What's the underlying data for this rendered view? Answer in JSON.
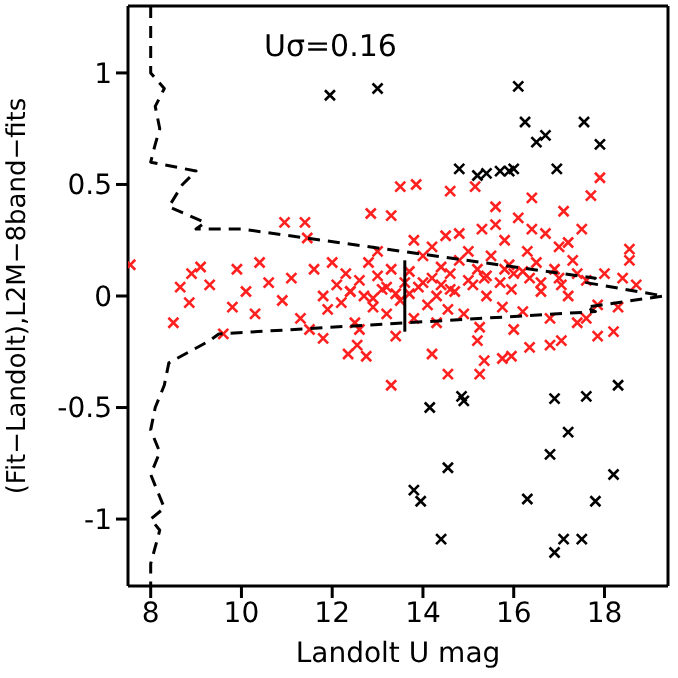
{
  "chart_data": {
    "type": "scatter",
    "xlabel": "Landolt U mag",
    "ylabel": "(Fit−Landolt),L2M−8band−fits",
    "annotations": [
      "Uσ=0.16"
    ],
    "xlim": [
      7.5,
      19.4
    ],
    "ylim": [
      -1.3,
      1.3
    ],
    "xticks": [
      8,
      10,
      12,
      14,
      16,
      18
    ],
    "yticks": [
      -1,
      -0.5,
      0,
      0.5,
      1
    ],
    "marker": "cross",
    "series": [
      {
        "color": "#ff2020",
        "x": [
          7.55,
          8.5,
          8.65,
          8.9,
          9.1,
          8.85,
          9.6,
          9.3,
          9.8,
          10.1,
          10.3,
          10.6,
          10.9,
          10.95,
          11.4,
          11.45,
          11.1,
          11.3,
          11.6,
          11.8,
          11.9,
          12.1,
          12.2,
          12.3,
          12.4,
          12.5,
          12.6,
          12.7,
          12.8,
          12.85,
          12.9,
          13.0,
          13.1,
          13.2,
          13.3,
          13.3,
          13.4,
          13.5,
          13.5,
          13.6,
          13.7,
          13.8,
          13.85,
          13.9,
          14.0,
          14.1,
          14.2,
          14.2,
          14.3,
          14.4,
          14.5,
          14.55,
          14.6,
          14.6,
          14.7,
          14.8,
          14.9,
          15.0,
          15.1,
          15.15,
          15.2,
          15.25,
          15.3,
          15.35,
          15.4,
          15.5,
          15.6,
          15.7,
          15.75,
          15.8,
          15.9,
          15.95,
          16.0,
          16.1,
          16.2,
          16.3,
          16.35,
          16.4,
          16.5,
          16.6,
          16.7,
          16.8,
          16.9,
          17.0,
          17.05,
          17.1,
          17.2,
          17.3,
          17.4,
          17.5,
          17.6,
          17.7,
          17.85,
          17.9,
          18.0,
          18.2,
          18.4,
          18.55,
          18.55,
          18.7,
          11.8,
          12.35,
          12.55,
          12.75,
          13.3,
          14.2,
          14.55,
          15.25,
          15.35,
          15.75,
          15.95,
          16.35,
          17.05,
          17.85,
          12.0,
          12.6,
          13.0,
          13.4,
          13.8,
          14.3,
          14.8,
          15.2,
          15.6,
          16.0,
          16.4,
          16.8,
          17.2,
          17.6,
          12.4,
          13.2,
          14.0,
          14.6,
          15.4,
          16.2,
          17.0,
          12.9,
          13.7,
          14.4,
          15.0,
          15.8,
          16.6,
          17.4,
          11.5,
          10.4,
          9.9,
          18.3
        ],
        "values": [
          0.14,
          -0.12,
          0.04,
          0.1,
          0.13,
          -0.03,
          -0.17,
          0.05,
          -0.05,
          0.02,
          -0.08,
          0.06,
          -0.02,
          0.33,
          0.33,
          0.26,
          0.08,
          -0.1,
          0.12,
          0.0,
          -0.06,
          0.05,
          -0.03,
          0.1,
          0.02,
          -0.12,
          0.07,
          0.0,
          0.15,
          0.37,
          -0.05,
          0.09,
          0.03,
          -0.08,
          0.36,
          0.12,
          0.01,
          0.49,
          -0.02,
          0.06,
          0.11,
          -0.1,
          0.5,
          0.04,
          0.18,
          -0.04,
          0.08,
          0.22,
          0.0,
          0.13,
          0.27,
          -0.06,
          0.47,
          0.1,
          0.02,
          0.16,
          -0.08,
          0.2,
          0.05,
          0.49,
          0.12,
          -0.14,
          0.3,
          0.08,
          0.0,
          0.18,
          0.4,
          0.06,
          -0.05,
          0.25,
          0.14,
          0.03,
          0.1,
          0.35,
          -0.07,
          0.2,
          0.08,
          0.44,
          0.15,
          0.02,
          0.28,
          -0.1,
          0.12,
          0.22,
          0.05,
          0.38,
          0.0,
          0.16,
          -0.12,
          0.3,
          0.07,
          0.45,
          -0.04,
          0.53,
          0.1,
          -0.16,
          0.08,
          0.21,
          0.16,
          0.05,
          -0.19,
          -0.26,
          -0.22,
          -0.27,
          -0.4,
          -0.26,
          -0.35,
          -0.35,
          -0.29,
          -0.28,
          -0.27,
          -0.23,
          -0.2,
          -0.18,
          0.15,
          -0.15,
          0.2,
          -0.18,
          0.25,
          -0.12,
          0.28,
          -0.2,
          0.32,
          -0.15,
          0.3,
          -0.22,
          0.24,
          -0.1,
          0.02,
          0.04,
          0.06,
          0.03,
          0.09,
          0.11,
          0.08,
          -0.01,
          0.01,
          0.05,
          0.07,
          0.12,
          0.06,
          0.1,
          -0.15,
          0.15,
          0.12,
          -0.05
        ]
      },
      {
        "color": "#000000",
        "x": [
          11.95,
          13.0,
          16.1,
          16.25,
          16.5,
          16.7,
          17.55,
          17.9,
          14.8,
          15.2,
          15.4,
          15.7,
          15.9,
          16.0,
          16.95,
          14.15,
          14.85,
          14.9,
          14.55,
          13.8,
          13.95,
          14.4,
          16.9,
          17.6,
          18.3,
          17.2,
          16.8,
          18.2,
          16.3,
          17.8,
          17.1,
          17.5,
          16.9
        ],
        "values": [
          0.9,
          0.93,
          0.94,
          0.78,
          0.69,
          0.72,
          0.78,
          0.68,
          0.57,
          0.54,
          0.55,
          0.56,
          0.56,
          0.57,
          0.57,
          -0.5,
          -0.45,
          -0.47,
          -0.77,
          -0.87,
          -0.92,
          -1.09,
          -0.46,
          -0.45,
          -0.4,
          -0.61,
          -0.71,
          -0.8,
          -0.91,
          -0.92,
          -1.09,
          -1.09,
          -1.15
        ]
      },
      {
        "type": "line",
        "color": "#000000",
        "line_style": "dashed",
        "marker": "none",
        "x": [
          8.0,
          8.0,
          8.3,
          8.1,
          8.2,
          8.1,
          8.0,
          9.0,
          8.7,
          8.4,
          9.2,
          9.0,
          10.0,
          17.8,
          17.6,
          19.3,
          17.6,
          17.8,
          9.5,
          9.3,
          8.4,
          8.3,
          8.1,
          8.0,
          8.2,
          8.0,
          8.3,
          8.0,
          8.2,
          8.0,
          8.0
        ],
        "values": [
          1.3,
          1.0,
          0.93,
          0.85,
          0.75,
          0.68,
          0.6,
          0.56,
          0.5,
          0.4,
          0.33,
          0.3,
          0.3,
          0.08,
          0.06,
          0.0,
          -0.05,
          -0.07,
          -0.17,
          -0.2,
          -0.3,
          -0.4,
          -0.5,
          -0.6,
          -0.7,
          -0.8,
          -0.95,
          -1.0,
          -1.05,
          -1.2,
          -1.3
        ]
      },
      {
        "type": "line",
        "color": "#000000",
        "line_style": "solid",
        "marker": "none",
        "x": [
          13.6,
          13.6
        ],
        "values": [
          -0.16,
          0.16
        ]
      }
    ]
  }
}
